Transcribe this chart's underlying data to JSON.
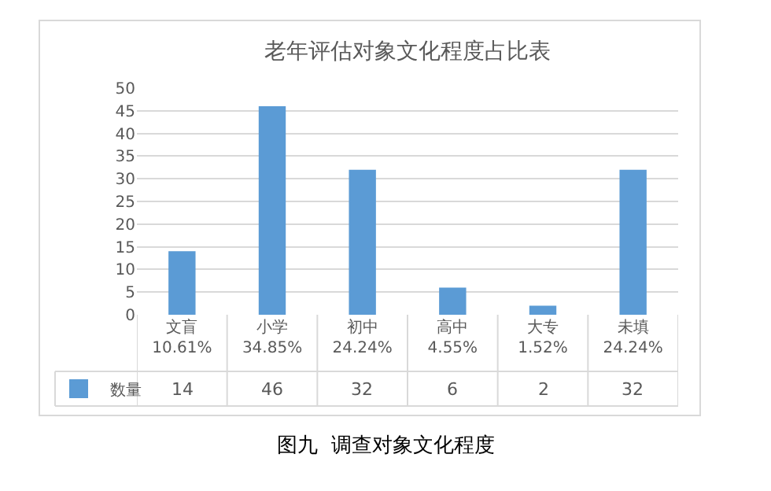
{
  "chart_data": {
    "type": "bar",
    "title": "老年评估对象文化程度占比表",
    "categories": [
      "文盲\n10.61%",
      "小学\n34.85%",
      "初中\n24.24%",
      "高中\n4.55%",
      "大专\n1.52%",
      "未填\n24.24%"
    ],
    "series": [
      {
        "name": "数量",
        "color": "#5b9bd5",
        "values": [
          14,
          46,
          32,
          6,
          2,
          32
        ]
      }
    ],
    "legend": "bottom left",
    "ylim": [
      0,
      50
    ],
    "yticks": [
      0,
      5,
      10,
      15,
      20,
      25,
      30,
      35,
      40,
      45,
      50
    ],
    "grid": "y",
    "data_labels": true,
    "annotations": [
      "图九  调查对象文化程度"
    ]
  }
}
